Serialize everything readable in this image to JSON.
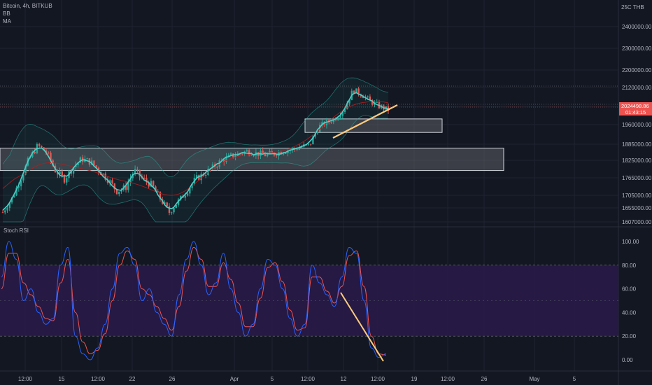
{
  "legend": {
    "title": "Bitcoin, 4h, BITKUB",
    "bb": "BB",
    "ma": "MA",
    "stoch": "Stoch RSI"
  },
  "colors": {
    "background": "#131722",
    "grid": "#1f2330",
    "candle_up": "#26a69a",
    "candle_down": "#ef5350",
    "bb_line": "#26a69a",
    "ma_line": "#b71c1c",
    "stoch_k": "#2962ff",
    "stoch_d": "#ef5350",
    "stoch_band": "#2a1a4a",
    "trendline": "#ffcc80",
    "price_tag": "#ef5350",
    "zone_fill": "#5d5f66"
  },
  "price_axis": {
    "currency_label": "25C THB",
    "ticks": [
      "2400000.00",
      "2300000.00",
      "2200000.00",
      "2120000.00",
      "2040000.00",
      "1960000.00",
      "1885000.00",
      "1825000.00",
      "1765000.00",
      "1705000.00",
      "1655000.00",
      "1607000.00"
    ],
    "current_price": "2024498.86",
    "countdown": "01:43:15"
  },
  "stoch_axis": {
    "ticks": [
      "100.00",
      "80.00",
      "60.00",
      "40.00",
      "20.00",
      "0.00"
    ]
  },
  "time_axis": {
    "ticks": [
      "12:00",
      "15",
      "12:00",
      "22",
      "26",
      "Apr",
      "5",
      "12:00",
      "12",
      "12:00",
      "19",
      "12:00",
      "26",
      "May",
      "5"
    ]
  },
  "chart_data": [
    {
      "type": "candlestick",
      "symbol": "Bitcoin",
      "interval": "4h",
      "exchange": "BITKUB",
      "ylim": [
        1607000,
        2500000
      ],
      "current_price": 2024498.86,
      "indicators": [
        "BB",
        "MA"
      ],
      "zones": [
        {
          "from": 1930000,
          "to": 1985000
        },
        {
          "from": 1790000,
          "to": 1870000
        }
      ],
      "trend_path": [
        1640000,
        1690000,
        1760000,
        1830000,
        1880000,
        1855000,
        1790000,
        1760000,
        1800000,
        1830000,
        1820000,
        1790000,
        1760000,
        1720000,
        1730000,
        1790000,
        1760000,
        1740000,
        1690000,
        1640000,
        1680000,
        1720000,
        1760000,
        1780000,
        1800000,
        1825000,
        1840000,
        1850000,
        1860000,
        1850000,
        1845000,
        1850000,
        1860000,
        1865000,
        1875000,
        1880000,
        1950000,
        1970000,
        1990000,
        2030000,
        2110000,
        2090000,
        2060000,
        2040000,
        2025000
      ]
    },
    {
      "type": "line",
      "name": "Stoch RSI",
      "ylim": [
        0,
        100
      ],
      "band": [
        20,
        80
      ],
      "k": [
        70,
        100,
        85,
        50,
        60,
        40,
        30,
        35,
        80,
        95,
        20,
        5,
        0,
        10,
        30,
        60,
        90,
        95,
        80,
        50,
        60,
        40,
        30,
        20,
        55,
        85,
        100,
        80,
        55,
        65,
        90,
        60,
        40,
        20,
        30,
        60,
        85,
        80,
        60,
        35,
        20,
        30,
        80,
        65,
        55,
        45,
        70,
        95,
        90,
        50,
        10,
        2,
        5
      ],
      "d": [
        60,
        90,
        90,
        65,
        55,
        45,
        35,
        33,
        65,
        85,
        40,
        15,
        5,
        8,
        22,
        50,
        80,
        92,
        85,
        60,
        55,
        45,
        35,
        25,
        45,
        75,
        95,
        85,
        62,
        62,
        82,
        68,
        48,
        28,
        28,
        52,
        78,
        82,
        66,
        42,
        25,
        27,
        70,
        70,
        58,
        48,
        62,
        88,
        92,
        62,
        20,
        5,
        4
      ]
    }
  ]
}
